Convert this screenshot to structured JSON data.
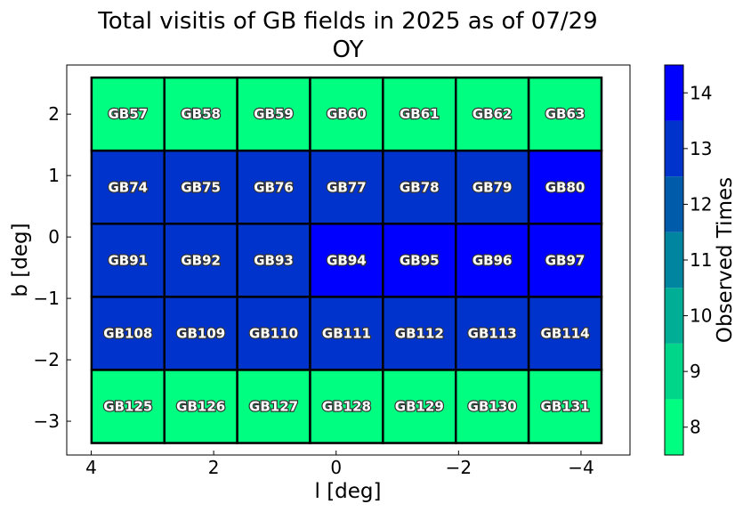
{
  "chart_data": {
    "type": "heatmap",
    "title": "Total visitis of GB fields in 2025 as of 07/29",
    "subtitle": "OY",
    "xlabel": "l [deg]",
    "ylabel": "b [deg]",
    "xlim": [
      4.4,
      -4.8
    ],
    "ylim": [
      -3.55,
      2.8
    ],
    "xticks": [
      4,
      2,
      0,
      -2,
      -4
    ],
    "xtick_labels": [
      "4",
      "2",
      "0",
      "−2",
      "−4"
    ],
    "yticks": [
      2,
      1,
      0,
      -1,
      -2,
      -3
    ],
    "ytick_labels": [
      "2",
      "1",
      "0",
      "−1",
      "−2",
      "−3"
    ],
    "field_width_deg": 1.19,
    "field_height_deg": 1.19,
    "l_centers": [
      3.4,
      2.21,
      1.02,
      -0.17,
      -1.36,
      -2.55,
      -3.74
    ],
    "b_centers": [
      2.0,
      0.81,
      -0.38,
      -1.57,
      -2.76
    ],
    "fields": [
      [
        "GB57",
        "GB58",
        "GB59",
        "GB60",
        "GB61",
        "GB62",
        "GB63"
      ],
      [
        "GB74",
        "GB75",
        "GB76",
        "GB77",
        "GB78",
        "GB79",
        "GB80"
      ],
      [
        "GB91",
        "GB92",
        "GB93",
        "GB94",
        "GB95",
        "GB96",
        "GB97"
      ],
      [
        "GB108",
        "GB109",
        "GB110",
        "GB111",
        "GB112",
        "GB113",
        "GB114"
      ],
      [
        "GB125",
        "GB126",
        "GB127",
        "GB128",
        "GB129",
        "GB130",
        "GB131"
      ]
    ],
    "values": [
      [
        8,
        8,
        8,
        8,
        8,
        8,
        8
      ],
      [
        13,
        13,
        13,
        13,
        13,
        13,
        14
      ],
      [
        13,
        13,
        13,
        14,
        14,
        14,
        14
      ],
      [
        13,
        13,
        13,
        13,
        13,
        13,
        13
      ],
      [
        8,
        8,
        8,
        8,
        8,
        8,
        8
      ]
    ],
    "colorbar": {
      "label": "Observed Times",
      "range": [
        7.5,
        14.5
      ],
      "ticks": [
        8,
        9,
        10,
        11,
        12,
        13,
        14
      ],
      "tick_labels": [
        "8",
        "9",
        "10",
        "11",
        "12",
        "13",
        "14"
      ],
      "colors": [
        "#00ff80",
        "#00d68a",
        "#00ad95",
        "#0085a0",
        "#005cab",
        "#0033cc",
        "#0000ff"
      ]
    }
  }
}
